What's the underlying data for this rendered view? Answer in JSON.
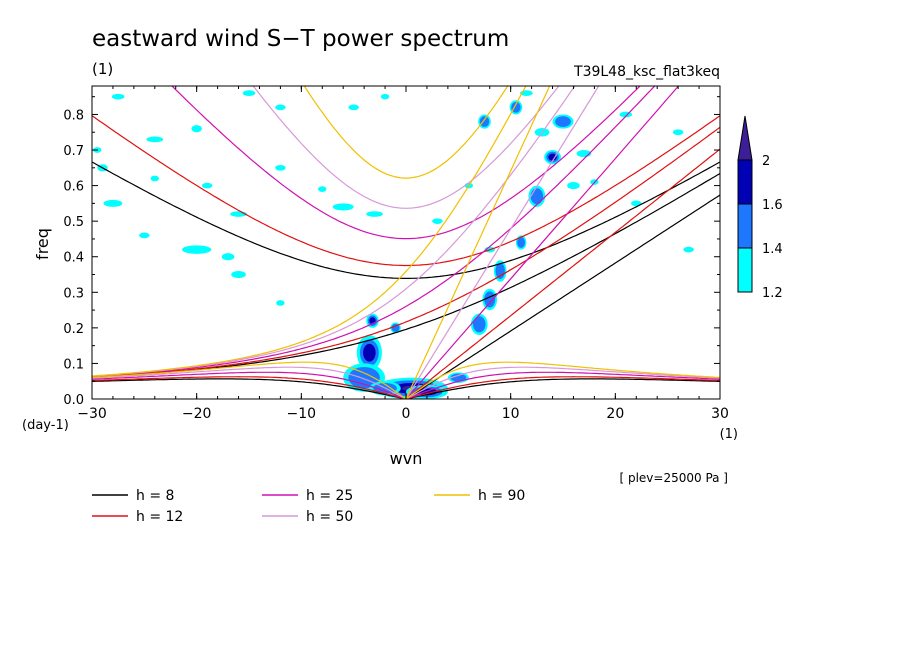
{
  "chart_data": {
    "type": "heatmap",
    "title": "eastward wind S−T power spectrum",
    "subtitle_left": "(1)",
    "subtitle_right": "T39L48_ksc_flat3keq",
    "xlabel": "wvn",
    "ylabel": "freq",
    "x_unit": "(1)",
    "y_unit": "(day-1)",
    "annotation": "[ plev=25000 Pa ]",
    "xlim": [
      -30,
      30
    ],
    "ylim": [
      0,
      0.88
    ],
    "x_ticks": [
      -30,
      -20,
      -10,
      0,
      10,
      20,
      30
    ],
    "x_tick_labels": [
      "−30",
      "−20",
      "−10",
      "0",
      "10",
      "20",
      "30"
    ],
    "y_ticks": [
      0,
      0.1,
      0.2,
      0.3,
      0.4,
      0.5,
      0.6,
      0.7,
      0.8
    ],
    "y_tick_labels": [
      "0.0",
      "0.1",
      "0.2",
      "0.3",
      "0.4",
      "0.5",
      "0.6",
      "0.7",
      "0.8"
    ],
    "grid": false,
    "colorbar": {
      "levels": [
        1.2,
        1.4,
        1.6,
        2
      ],
      "labels": [
        "1.2",
        "1.4",
        "1.6",
        "2"
      ],
      "colors": [
        "#00ffff",
        "#1e78ff",
        "#0000b4",
        "#3c1e96"
      ]
    },
    "dispersion_curves": [
      {
        "label": "h =  8",
        "h": 8,
        "color": "#000000"
      },
      {
        "label": "h = 12",
        "h": 12,
        "color": "#e01010"
      },
      {
        "label": "h = 25",
        "h": 25,
        "color": "#d010b0"
      },
      {
        "label": "h = 50",
        "h": 50,
        "color": "#d898d8"
      },
      {
        "label": "h = 90",
        "h": 90,
        "color": "#f0c000"
      }
    ],
    "spectral_blobs": [
      {
        "wvn": 0.5,
        "freq": 0.03,
        "level": 3,
        "rx": 3.5,
        "ry": 0.03
      },
      {
        "wvn": 2.0,
        "freq": 0.02,
        "level": 2,
        "rx": 2.0,
        "ry": 0.02
      },
      {
        "wvn": -3.5,
        "freq": 0.13,
        "level": 2,
        "rx": 1.2,
        "ry": 0.05
      },
      {
        "wvn": -3.2,
        "freq": 0.22,
        "level": 2,
        "rx": 0.6,
        "ry": 0.02
      },
      {
        "wvn": -1.0,
        "freq": 0.2,
        "level": 1,
        "rx": 0.5,
        "ry": 0.015
      },
      {
        "wvn": -4.0,
        "freq": 0.06,
        "level": 1,
        "rx": 2.0,
        "ry": 0.04
      },
      {
        "wvn": 7.0,
        "freq": 0.21,
        "level": 1,
        "rx": 0.8,
        "ry": 0.03
      },
      {
        "wvn": 8.0,
        "freq": 0.28,
        "level": 1,
        "rx": 0.7,
        "ry": 0.03
      },
      {
        "wvn": 9.0,
        "freq": 0.36,
        "level": 1,
        "rx": 0.6,
        "ry": 0.03
      },
      {
        "wvn": 11.0,
        "freq": 0.44,
        "level": 1,
        "rx": 0.5,
        "ry": 0.02
      },
      {
        "wvn": 12.5,
        "freq": 0.57,
        "level": 1,
        "rx": 0.8,
        "ry": 0.03
      },
      {
        "wvn": 14.0,
        "freq": 0.68,
        "level": 2,
        "rx": 0.8,
        "ry": 0.02
      },
      {
        "wvn": 15.0,
        "freq": 0.78,
        "level": 1,
        "rx": 1.0,
        "ry": 0.02
      },
      {
        "wvn": 7.5,
        "freq": 0.78,
        "level": 1,
        "rx": 0.6,
        "ry": 0.02
      },
      {
        "wvn": 10.5,
        "freq": 0.82,
        "level": 1,
        "rx": 0.6,
        "ry": 0.02
      },
      {
        "wvn": 5.0,
        "freq": 0.06,
        "level": 1,
        "rx": 1.0,
        "ry": 0.015
      },
      {
        "wvn": -2.0,
        "freq": 0.03,
        "level": 1,
        "rx": 1.5,
        "ry": 0.02
      }
    ],
    "noise_patches": [
      {
        "wvn": -27.5,
        "freq": 0.85,
        "rx": 0.6,
        "ry": 0.008
      },
      {
        "wvn": -24,
        "freq": 0.73,
        "rx": 0.8,
        "ry": 0.008
      },
      {
        "wvn": -20,
        "freq": 0.76,
        "rx": 0.5,
        "ry": 0.01
      },
      {
        "wvn": -15,
        "freq": 0.86,
        "rx": 0.6,
        "ry": 0.008
      },
      {
        "wvn": -12,
        "freq": 0.82,
        "rx": 0.5,
        "ry": 0.008
      },
      {
        "wvn": -29.5,
        "freq": 0.7,
        "rx": 0.4,
        "ry": 0.008
      },
      {
        "wvn": -29,
        "freq": 0.65,
        "rx": 0.5,
        "ry": 0.01
      },
      {
        "wvn": -28,
        "freq": 0.55,
        "rx": 0.9,
        "ry": 0.01
      },
      {
        "wvn": -24,
        "freq": 0.62,
        "rx": 0.4,
        "ry": 0.008
      },
      {
        "wvn": -19,
        "freq": 0.6,
        "rx": 0.5,
        "ry": 0.008
      },
      {
        "wvn": -25,
        "freq": 0.46,
        "rx": 0.5,
        "ry": 0.008
      },
      {
        "wvn": -16,
        "freq": 0.52,
        "rx": 0.8,
        "ry": 0.008
      },
      {
        "wvn": -17,
        "freq": 0.4,
        "rx": 0.6,
        "ry": 0.01
      },
      {
        "wvn": -20,
        "freq": 0.42,
        "rx": 1.4,
        "ry": 0.012
      },
      {
        "wvn": -16,
        "freq": 0.35,
        "rx": 0.7,
        "ry": 0.01
      },
      {
        "wvn": -12,
        "freq": 0.27,
        "rx": 0.4,
        "ry": 0.008
      },
      {
        "wvn": -6,
        "freq": 0.54,
        "rx": 1.0,
        "ry": 0.01
      },
      {
        "wvn": -8,
        "freq": 0.59,
        "rx": 0.4,
        "ry": 0.008
      },
      {
        "wvn": -3,
        "freq": 0.52,
        "rx": 0.8,
        "ry": 0.008
      },
      {
        "wvn": -12,
        "freq": 0.65,
        "rx": 0.5,
        "ry": 0.008
      },
      {
        "wvn": -5,
        "freq": 0.82,
        "rx": 0.5,
        "ry": 0.008
      },
      {
        "wvn": -2,
        "freq": 0.85,
        "rx": 0.4,
        "ry": 0.008
      },
      {
        "wvn": 3,
        "freq": 0.5,
        "rx": 0.5,
        "ry": 0.008
      },
      {
        "wvn": 6,
        "freq": 0.6,
        "rx": 0.4,
        "ry": 0.008
      },
      {
        "wvn": 8,
        "freq": 0.42,
        "rx": 0.5,
        "ry": 0.008
      },
      {
        "wvn": 17,
        "freq": 0.69,
        "rx": 0.7,
        "ry": 0.01
      },
      {
        "wvn": 21,
        "freq": 0.8,
        "rx": 0.6,
        "ry": 0.008
      },
      {
        "wvn": 22,
        "freq": 0.55,
        "rx": 0.5,
        "ry": 0.008
      },
      {
        "wvn": 26,
        "freq": 0.75,
        "rx": 0.5,
        "ry": 0.008
      },
      {
        "wvn": 27,
        "freq": 0.42,
        "rx": 0.5,
        "ry": 0.008
      },
      {
        "wvn": 18,
        "freq": 0.61,
        "rx": 0.4,
        "ry": 0.008
      },
      {
        "wvn": 13,
        "freq": 0.75,
        "rx": 0.7,
        "ry": 0.012
      },
      {
        "wvn": 16,
        "freq": 0.6,
        "rx": 0.6,
        "ry": 0.01
      },
      {
        "wvn": 11.5,
        "freq": 0.86,
        "rx": 0.6,
        "ry": 0.008
      }
    ]
  }
}
